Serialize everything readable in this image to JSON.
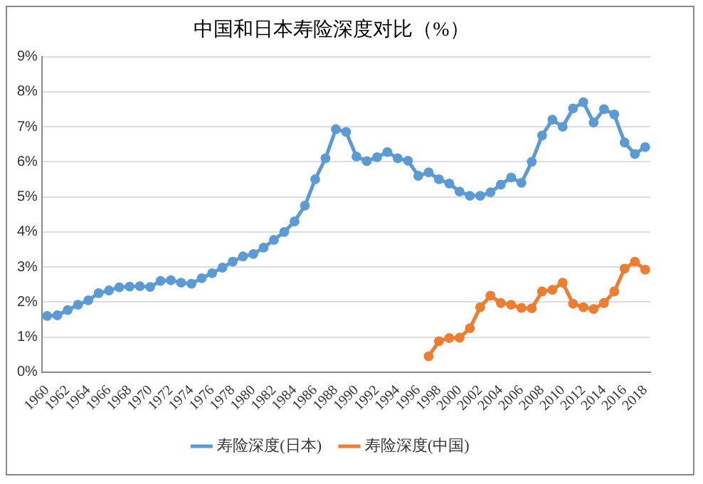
{
  "chart_data": {
    "type": "line",
    "title": "中国和日本寿险深度对比（%）",
    "categories": [
      "1960",
      null,
      "1962",
      null,
      "1964",
      null,
      "1966",
      null,
      "1968",
      null,
      "1970",
      null,
      "1972",
      null,
      "1974",
      null,
      "1976",
      null,
      "1978",
      null,
      "1980",
      null,
      "1982",
      null,
      "1984",
      null,
      "1986",
      null,
      "1988",
      null,
      "1990",
      null,
      "1992",
      null,
      "1994",
      null,
      "1996",
      null,
      "1998",
      null,
      "2000",
      null,
      "2002",
      null,
      "2004",
      null,
      "2006",
      null,
      "2008",
      null,
      "2010",
      null,
      "2012",
      null,
      "2014",
      null,
      "2016",
      null,
      "2018"
    ],
    "series": [
      {
        "name": "寿险深度(日本)",
        "color": "#5b9bd5",
        "values": [
          1.6,
          1.62,
          1.77,
          1.92,
          2.05,
          2.25,
          2.33,
          2.42,
          2.44,
          2.45,
          2.43,
          2.6,
          2.62,
          2.55,
          2.52,
          2.68,
          2.82,
          2.98,
          3.15,
          3.3,
          3.37,
          3.55,
          3.77,
          4.0,
          4.3,
          4.75,
          5.5,
          6.1,
          6.93,
          6.85,
          6.15,
          6.02,
          6.13,
          6.28,
          6.1,
          6.03,
          5.6,
          5.7,
          5.5,
          5.38,
          5.15,
          5.03,
          5.03,
          5.13,
          5.35,
          5.55,
          5.4,
          6.0,
          6.75,
          7.2,
          7.0,
          7.52,
          7.7,
          7.12,
          7.5,
          7.35,
          6.55,
          6.22,
          6.42
        ]
      },
      {
        "name": "寿险深度(中国)",
        "color": "#ed7d31",
        "values": [
          null,
          null,
          null,
          null,
          null,
          null,
          null,
          null,
          null,
          null,
          null,
          null,
          null,
          null,
          null,
          null,
          null,
          null,
          null,
          null,
          null,
          null,
          null,
          null,
          null,
          null,
          null,
          null,
          null,
          null,
          null,
          null,
          null,
          null,
          null,
          null,
          null,
          0.45,
          0.88,
          0.97,
          0.98,
          1.25,
          1.85,
          2.18,
          1.97,
          1.92,
          1.83,
          1.82,
          2.3,
          2.35,
          2.55,
          1.95,
          1.85,
          1.8,
          1.97,
          2.3,
          2.95,
          3.15,
          2.92
        ]
      }
    ],
    "ylim": [
      0,
      9
    ],
    "yticks": [
      {
        "value": 0,
        "label": "0%"
      },
      {
        "value": 1,
        "label": "1%"
      },
      {
        "value": 2,
        "label": "2%"
      },
      {
        "value": 3,
        "label": "3%"
      },
      {
        "value": 4,
        "label": "4%"
      },
      {
        "value": 5,
        "label": "5%"
      },
      {
        "value": 6,
        "label": "6%"
      },
      {
        "value": 7,
        "label": "7%"
      },
      {
        "value": 8,
        "label": "8%"
      },
      {
        "value": 9,
        "label": "9%"
      }
    ],
    "grid": "y",
    "legend": "bottom",
    "marker": "circle",
    "line_style": "solid"
  }
}
